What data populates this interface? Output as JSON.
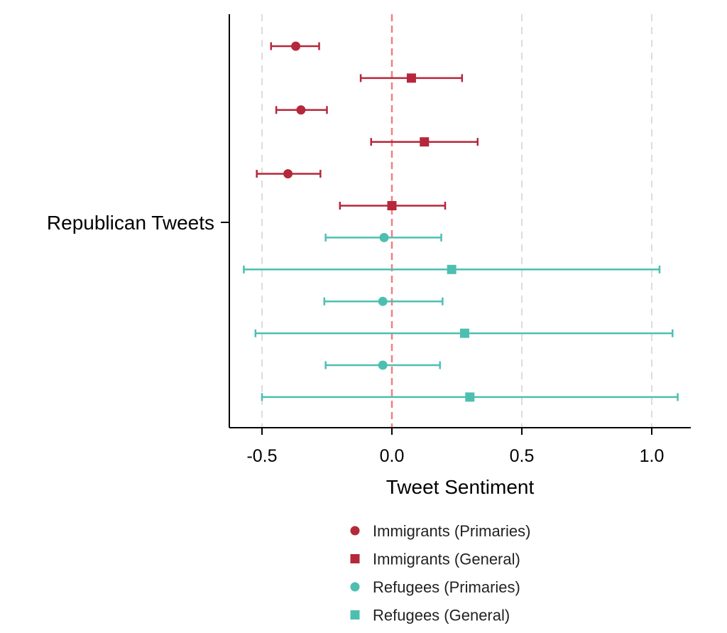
{
  "chart_data": {
    "type": "errorbar",
    "title": "",
    "xlabel": "Tweet Sentiment",
    "ylabel": "",
    "y_category": "Republican Tweets",
    "xlim": [
      -0.63,
      1.15
    ],
    "x_ticks": [
      -0.5,
      0.0,
      0.5,
      1.0
    ],
    "x_tick_labels": [
      "-0.5",
      "0.0",
      "0.5",
      "1.0"
    ],
    "reference_line": 0.0,
    "grid": "vertical dashed",
    "legend_position": "bottom",
    "colors": {
      "immigrants": "#b5273a",
      "refugees": "#4dbfb0",
      "reference": "#f08080",
      "grid": "#dddddd"
    },
    "series": [
      {
        "name": "Immigrants (Primaries)",
        "marker": "circle",
        "color": "#b5273a",
        "points": [
          {
            "estimate": -0.37,
            "low": -0.465,
            "high": -0.28
          },
          {
            "estimate": -0.35,
            "low": -0.445,
            "high": -0.25
          },
          {
            "estimate": -0.4,
            "low": -0.52,
            "high": -0.275
          }
        ]
      },
      {
        "name": "Immigrants (General)",
        "marker": "square",
        "color": "#b5273a",
        "points": [
          {
            "estimate": 0.075,
            "low": -0.12,
            "high": 0.27
          },
          {
            "estimate": 0.125,
            "low": -0.08,
            "high": 0.33
          },
          {
            "estimate": 0.0,
            "low": -0.2,
            "high": 0.205
          }
        ]
      },
      {
        "name": "Refugees (Primaries)",
        "marker": "circle",
        "color": "#4dbfb0",
        "points": [
          {
            "estimate": -0.03,
            "low": -0.255,
            "high": 0.19
          },
          {
            "estimate": -0.035,
            "low": -0.26,
            "high": 0.195
          },
          {
            "estimate": -0.035,
            "low": -0.255,
            "high": 0.185
          }
        ]
      },
      {
        "name": "Refugees (General)",
        "marker": "square",
        "color": "#4dbfb0",
        "points": [
          {
            "estimate": 0.23,
            "low": -0.57,
            "high": 1.03
          },
          {
            "estimate": 0.28,
            "low": -0.525,
            "high": 1.08
          },
          {
            "estimate": 0.3,
            "low": -0.5,
            "high": 1.1
          }
        ]
      }
    ],
    "row_order": [
      {
        "series": 0,
        "point": 0
      },
      {
        "series": 1,
        "point": 0
      },
      {
        "series": 0,
        "point": 1
      },
      {
        "series": 1,
        "point": 1
      },
      {
        "series": 0,
        "point": 2
      },
      {
        "series": 1,
        "point": 2
      },
      {
        "series": 2,
        "point": 0
      },
      {
        "series": 3,
        "point": 0
      },
      {
        "series": 2,
        "point": 1
      },
      {
        "series": 3,
        "point": 1
      },
      {
        "series": 2,
        "point": 2
      },
      {
        "series": 3,
        "point": 2
      }
    ]
  }
}
